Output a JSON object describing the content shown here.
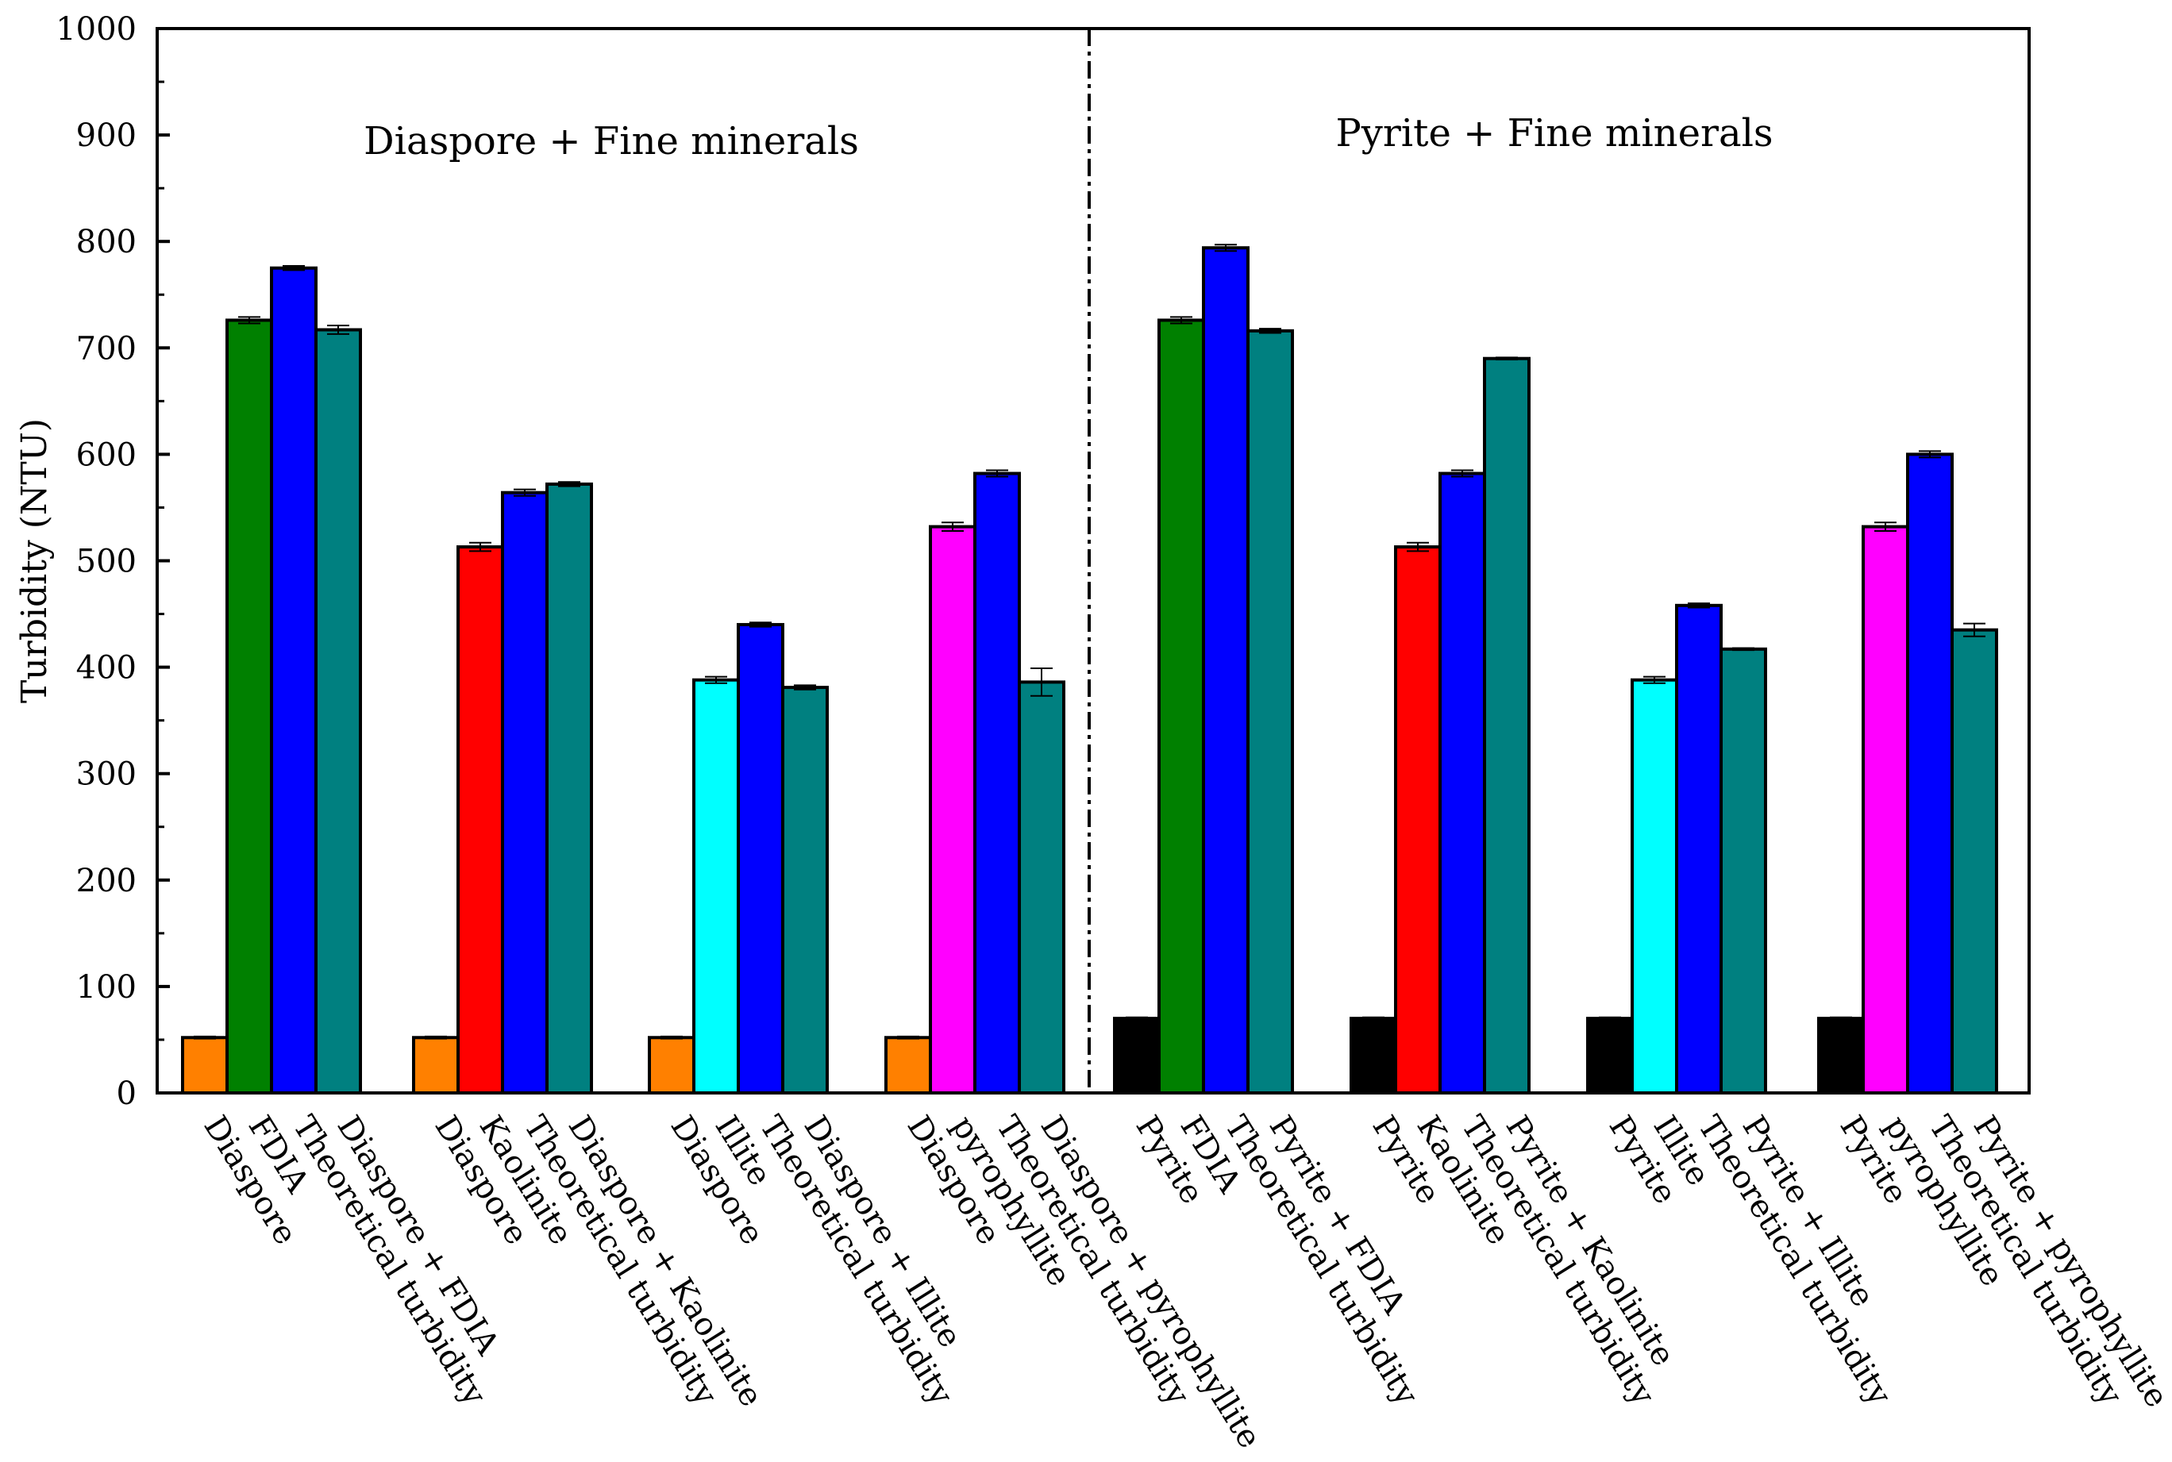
{
  "chart_data": {
    "type": "bar",
    "title": "",
    "xlabel": "",
    "ylabel": "Turbidity (NTU)",
    "ylim": [
      0,
      1000
    ],
    "yticks": [
      "0",
      "100",
      "200",
      "300",
      "400",
      "500",
      "600",
      "700",
      "800",
      "900",
      "1000"
    ],
    "panels": [
      "Diaspore + Fine minerals",
      "Pyrite + Fine minerals"
    ],
    "series_colors": {
      "Diaspore": "#FF8000",
      "Pyrite": "#000000",
      "FDIA": "#008000",
      "Kaolinite": "#FF0000",
      "Illite": "#00FFFF",
      "pyrophyllite": "#FF00FF",
      "Theoretical turbidity": "#0000FF",
      "Mixture": "#008080"
    },
    "groups": [
      {
        "panel": 0,
        "bars": [
          {
            "label": "Diaspore",
            "value": 52,
            "err": 1,
            "color": "#FF8000"
          },
          {
            "label": "FDIA",
            "value": 726,
            "err": 3,
            "color": "#008000"
          },
          {
            "label": "Theoretical turbidity",
            "value": 775,
            "err": 2,
            "color": "#0000FF"
          },
          {
            "label": "Diaspore + FDIA",
            "value": 717,
            "err": 4,
            "color": "#008080"
          }
        ]
      },
      {
        "panel": 0,
        "bars": [
          {
            "label": "Diaspore",
            "value": 52,
            "err": 1,
            "color": "#FF8000"
          },
          {
            "label": "Kaolinite",
            "value": 513,
            "err": 4,
            "color": "#FF0000"
          },
          {
            "label": "Theoretical turbidity",
            "value": 564,
            "err": 3,
            "color": "#0000FF"
          },
          {
            "label": "Diaspore + Kaolinite",
            "value": 572,
            "err": 2,
            "color": "#008080"
          }
        ]
      },
      {
        "panel": 0,
        "bars": [
          {
            "label": "Diaspore",
            "value": 52,
            "err": 1,
            "color": "#FF8000"
          },
          {
            "label": "Illite",
            "value": 388,
            "err": 3,
            "color": "#00FFFF"
          },
          {
            "label": "Theoretical turbidity",
            "value": 440,
            "err": 2,
            "color": "#0000FF"
          },
          {
            "label": "Diaspore + Illite",
            "value": 381,
            "err": 2,
            "color": "#008080"
          }
        ]
      },
      {
        "panel": 0,
        "bars": [
          {
            "label": "Diaspore",
            "value": 52,
            "err": 1,
            "color": "#FF8000"
          },
          {
            "label": "pyrophyllite",
            "value": 532,
            "err": 4,
            "color": "#FF00FF"
          },
          {
            "label": "Theoretical turbidity",
            "value": 582,
            "err": 3,
            "color": "#0000FF"
          },
          {
            "label": "Diaspore + pyrophyllite",
            "value": 386,
            "err": 13,
            "color": "#008080"
          }
        ]
      },
      {
        "panel": 1,
        "bars": [
          {
            "label": "Pyrite",
            "value": 70,
            "err": 1,
            "color": "#000000"
          },
          {
            "label": "FDIA",
            "value": 726,
            "err": 3,
            "color": "#008000"
          },
          {
            "label": "Theoretical turbidity",
            "value": 794,
            "err": 3,
            "color": "#0000FF"
          },
          {
            "label": "Pyrite + FDIA",
            "value": 716,
            "err": 2,
            "color": "#008080"
          }
        ]
      },
      {
        "panel": 1,
        "bars": [
          {
            "label": "Pyrite",
            "value": 70,
            "err": 1,
            "color": "#000000"
          },
          {
            "label": "Kaolinite",
            "value": 513,
            "err": 4,
            "color": "#FF0000"
          },
          {
            "label": "Theoretical turbidity",
            "value": 582,
            "err": 3,
            "color": "#0000FF"
          },
          {
            "label": "Pyrite + Kaolinite",
            "value": 690,
            "err": 1,
            "color": "#008080"
          }
        ]
      },
      {
        "panel": 1,
        "bars": [
          {
            "label": "Pyrite",
            "value": 70,
            "err": 1,
            "color": "#000000"
          },
          {
            "label": "Illite",
            "value": 388,
            "err": 3,
            "color": "#00FFFF"
          },
          {
            "label": "Theoretical turbidity",
            "value": 458,
            "err": 2,
            "color": "#0000FF"
          },
          {
            "label": "Pyrite + Illite",
            "value": 417,
            "err": 1,
            "color": "#008080"
          }
        ]
      },
      {
        "panel": 1,
        "bars": [
          {
            "label": "Pyrite",
            "value": 70,
            "err": 1,
            "color": "#000000"
          },
          {
            "label": "pyrophyllite",
            "value": 532,
            "err": 4,
            "color": "#FF00FF"
          },
          {
            "label": "Theoretical turbidity",
            "value": 600,
            "err": 3,
            "color": "#0000FF"
          },
          {
            "label": "Pyrite + pyrophyllite",
            "value": 435,
            "err": 6,
            "color": "#008080"
          }
        ]
      }
    ]
  }
}
